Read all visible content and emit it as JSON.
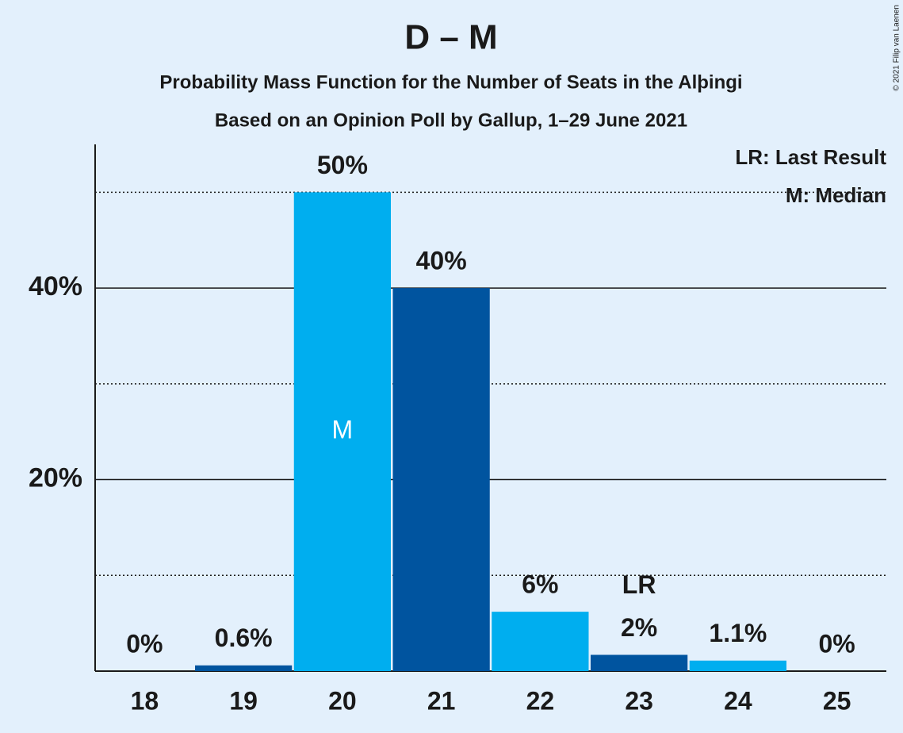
{
  "chart_data": {
    "type": "bar",
    "title": "D – M",
    "subtitle": "Probability Mass Function for the Number of Seats in the Alþingi",
    "caption": "Based on an Opinion Poll by Gallup, 1–29 June 2021",
    "credit": "© 2021 Filip van Laenen",
    "categories": [
      18,
      19,
      20,
      21,
      22,
      23,
      24,
      25
    ],
    "values": [
      0,
      0.6,
      50,
      40,
      6.2,
      1.7,
      1.1,
      0
    ],
    "value_labels": [
      "0%",
      "0.6%",
      "50%",
      "40%",
      "6%",
      "2%",
      "1.1%",
      "0%"
    ],
    "colors": [
      "#00aeef",
      "#00549f",
      "#00aeef",
      "#00549f",
      "#00aeef",
      "#00549f",
      "#00aeef",
      "#00549f"
    ],
    "ylim": [
      0,
      55
    ],
    "yticks": [
      {
        "value": 20,
        "label": "20%"
      },
      {
        "value": 40,
        "label": "40%"
      }
    ],
    "minor_yticks": [
      10,
      30,
      50
    ],
    "grid": true,
    "median": 20,
    "median_label": "M",
    "last_result": 23,
    "last_result_label": "LR",
    "legend": [
      "LR: Last Result",
      "M: Median"
    ],
    "legend_position": "upper right"
  }
}
